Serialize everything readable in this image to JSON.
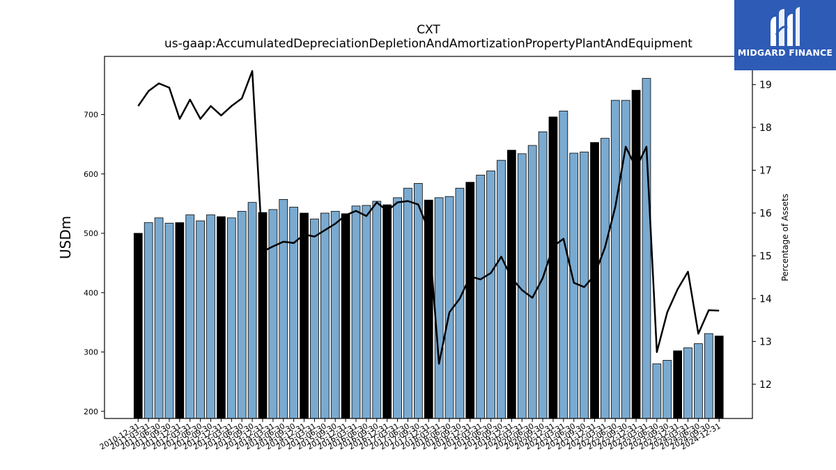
{
  "chart_data": {
    "type": "bar",
    "title": "CXT",
    "subtitle": "us-gaap:AccumulatedDepreciationDepletionAndAmortizationPropertyPlantAndEquipment",
    "ylabel": "USDm",
    "ylabel_right": "Percentage of Assets",
    "ylim": [
      188,
      798
    ],
    "ylim_right": [
      11.2,
      19.66
    ],
    "yticks": [
      200,
      300,
      400,
      500,
      600,
      700
    ],
    "yticks_right": [
      12,
      13,
      14,
      15,
      16,
      17,
      18,
      19
    ],
    "bar_color": "#7aaad0",
    "highlight_color": "#000000",
    "line_color": "#000000",
    "categories": [
      "2010-12-31",
      "2011-03-31",
      "2011-06-30",
      "2011-09-30",
      "2011-12-31",
      "2012-03-31",
      "2012-06-30",
      "2012-09-30",
      "2012-12-31",
      "2013-03-31",
      "2013-06-30",
      "2013-09-30",
      "2013-12-31",
      "2014-03-31",
      "2014-06-30",
      "2014-09-30",
      "2014-12-31",
      "2015-03-31",
      "2015-06-30",
      "2015-09-30",
      "2015-12-31",
      "2016-03-31",
      "2016-06-30",
      "2016-09-30",
      "2016-12-31",
      "2017-03-31",
      "2017-06-30",
      "2017-09-30",
      "2017-12-31",
      "2018-03-31",
      "2018-06-30",
      "2018-09-30",
      "2018-12-31",
      "2019-03-31",
      "2019-06-30",
      "2019-09-30",
      "2019-12-31",
      "2020-03-31",
      "2020-06-30",
      "2020-09-30",
      "2020-12-31",
      "2021-03-31",
      "2021-06-30",
      "2021-09-30",
      "2021-12-31",
      "2022-03-31",
      "2022-06-30",
      "2022-09-30",
      "2022-12-31",
      "2023-03-31",
      "2023-06-30",
      "2023-09-30",
      "2023-12-31",
      "2024-03-31",
      "2024-06-30",
      "2024-09-30",
      "2024-12-31"
    ],
    "series": [
      {
        "values": [
          500,
          518,
          526,
          517,
          518,
          531,
          521,
          531,
          528,
          526,
          537,
          552,
          535,
          540,
          557,
          544,
          534,
          524,
          534,
          537,
          533,
          546,
          547,
          554,
          548,
          560,
          576,
          584,
          556,
          560,
          562,
          576,
          586,
          598,
          605,
          623,
          640,
          634,
          648,
          671,
          696,
          706,
          635,
          637,
          653,
          660,
          724,
          724,
          741,
          761,
          280,
          286,
          302,
          307,
          314,
          331,
          327
        ],
        "highlight": [
          true,
          false,
          false,
          false,
          true,
          false,
          false,
          false,
          true,
          false,
          false,
          false,
          true,
          false,
          false,
          false,
          true,
          false,
          false,
          false,
          true,
          false,
          false,
          false,
          true,
          false,
          false,
          false,
          true,
          false,
          false,
          false,
          true,
          false,
          false,
          false,
          true,
          false,
          false,
          false,
          true,
          false,
          false,
          false,
          true,
          false,
          false,
          false,
          true,
          false,
          false,
          false,
          true,
          false,
          false,
          false,
          true
        ]
      },
      {
        "axis": "right",
        "values": [
          18.5,
          18.85,
          19.03,
          18.93,
          18.2,
          18.65,
          18.2,
          18.5,
          18.28,
          18.5,
          18.68,
          19.32,
          15.1,
          15.22,
          15.33,
          15.3,
          15.5,
          15.45,
          15.6,
          15.75,
          15.95,
          16.05,
          15.93,
          16.25,
          16.05,
          16.25,
          16.28,
          16.2,
          15.6,
          12.48,
          13.68,
          14.0,
          14.52,
          14.45,
          14.6,
          14.98,
          14.48,
          14.2,
          14.02,
          14.48,
          15.22,
          15.4,
          14.37,
          14.27,
          14.55,
          15.2,
          16.15,
          17.55,
          17.05,
          17.55,
          12.75,
          13.68,
          14.22,
          14.63,
          13.18,
          13.73,
          13.72
        ]
      }
    ]
  },
  "logo": {
    "text": "MIDGARD FINANCE"
  }
}
